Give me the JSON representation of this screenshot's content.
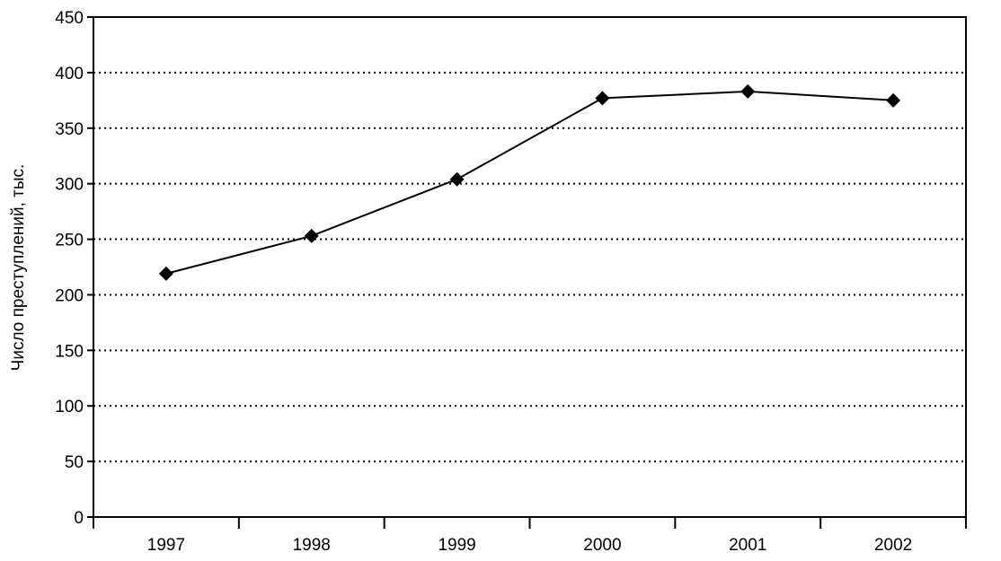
{
  "chart_data": {
    "type": "line",
    "title": "",
    "xlabel": "",
    "ylabel": "Число преступлений, тыс.",
    "categories": [
      "1997",
      "1998",
      "1999",
      "2000",
      "2001",
      "2002"
    ],
    "series": [
      {
        "values": [
          219,
          253,
          304,
          377,
          383,
          375
        ]
      }
    ],
    "ylim": [
      0,
      450
    ],
    "yticks": [
      0,
      50,
      100,
      150,
      200,
      250,
      300,
      350,
      400,
      450
    ],
    "ytick_labels": [
      "0",
      "50",
      "100",
      "150",
      "200",
      "250",
      "300",
      "350",
      "400",
      "450"
    ],
    "grid": "horizontal dotted",
    "legend": "none",
    "marker": "diamond",
    "line_color": "#000000"
  }
}
